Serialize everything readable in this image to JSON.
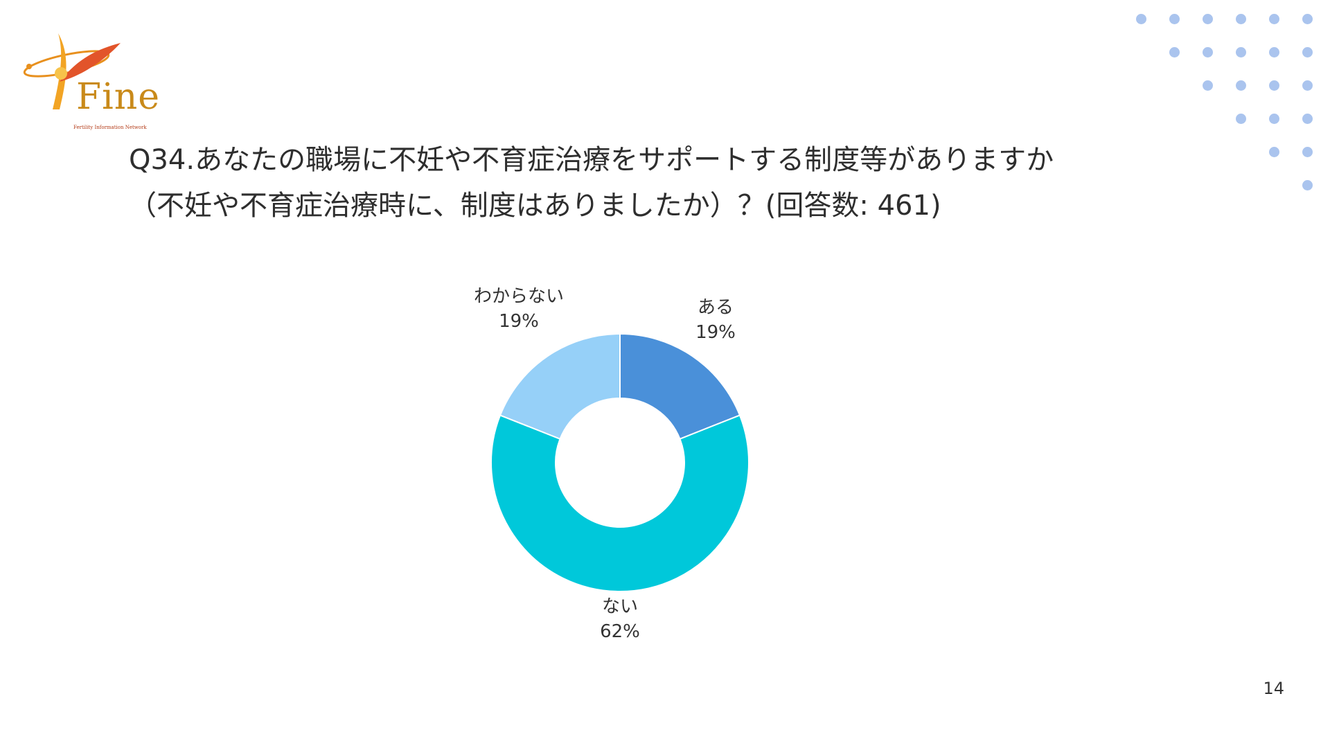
{
  "logo": {
    "text": "Fine",
    "subtext": "Fertility Information Network"
  },
  "title": {
    "line1": "Q34.あなたの職場に不妊や不育症治療をサポートする制度等がありますか",
    "line2": "（不妊や不育症治療時に、制度はありましたか）？(回答数: 461)"
  },
  "chart_data": {
    "type": "pie",
    "donut": true,
    "categories": [
      "ある",
      "ない",
      "わからない"
    ],
    "values": [
      19,
      62,
      19
    ],
    "labels": [
      "19%",
      "62%",
      "19%"
    ],
    "colors": [
      "#4a90d9",
      "#00c8da",
      "#96d0f8"
    ],
    "legend": "none",
    "data_labels": "outside"
  },
  "page_number": "14",
  "colors": {
    "dots": "#aac4ee",
    "title_text": "#2e2e2e"
  }
}
